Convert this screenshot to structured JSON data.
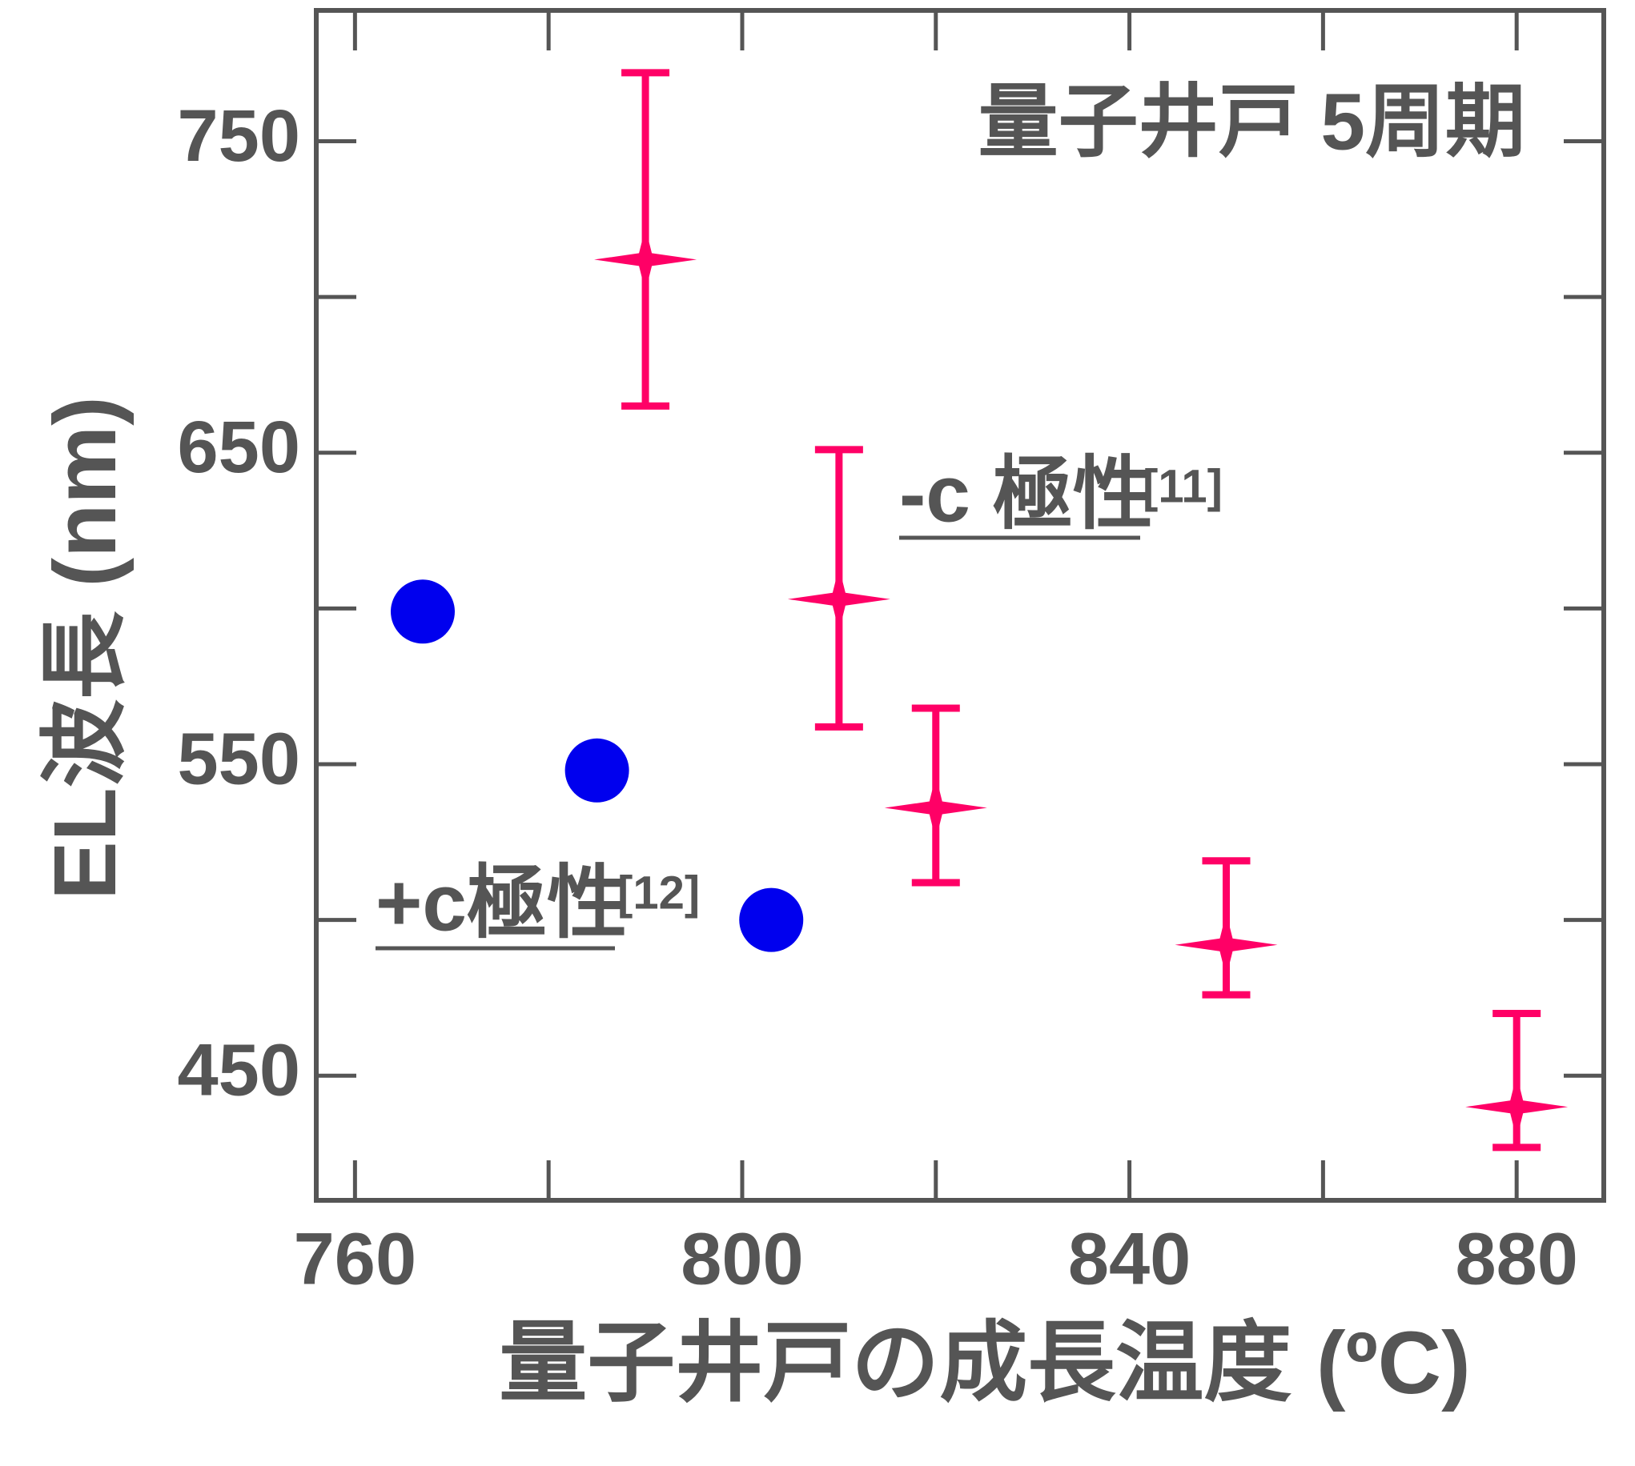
{
  "chart_data": {
    "type": "scatter",
    "x_label": "量子井戸の成長温度 (ºC)",
    "y_label": "EL波長 (nm)",
    "annotations": [
      {
        "text": "量子井戸  5周期"
      },
      {
        "text": "-c 極性",
        "ref": "[11]"
      },
      {
        "text": "+c極性",
        "ref": "[12]"
      }
    ],
    "xlim": [
      756,
      889
    ],
    "xticks": [
      760,
      800,
      840,
      880
    ],
    "xminor_ticks": [
      780,
      820,
      860
    ],
    "ylim": [
      410,
      792
    ],
    "yticks": [
      450,
      550,
      650,
      750
    ],
    "yminor_ticks": [
      500,
      600,
      700
    ],
    "series": [
      {
        "color": "#0000ee",
        "marker": "circle",
        "x": [
          767,
          785,
          803
        ],
        "values": [
          599,
          548,
          500
        ]
      },
      {
        "color": "#ff0066",
        "marker": "star",
        "x": [
          790,
          810,
          820,
          850,
          880
        ],
        "values": [
          712,
          603,
          536,
          492,
          440
        ],
        "yerr_plus": [
          60,
          48,
          32,
          27,
          30
        ],
        "yerr_minus": [
          47,
          41,
          24,
          16,
          13
        ]
      }
    ]
  }
}
